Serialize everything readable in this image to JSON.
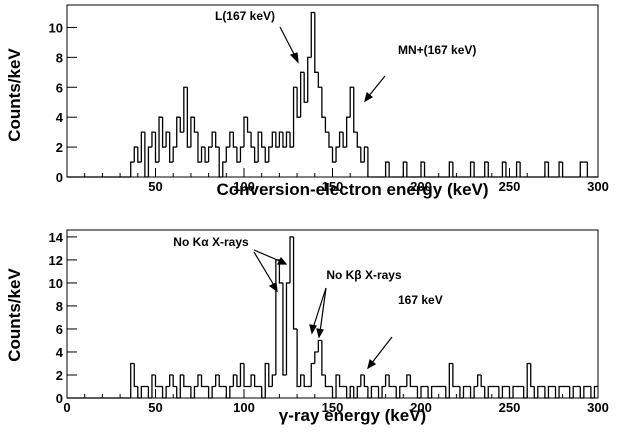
{
  "chart_data": [
    {
      "type": "histogram",
      "x_label": "Conversion-electron energy (keV)",
      "y_label": "Counts/keV",
      "color": "#000000",
      "xlim": [
        0,
        300
      ],
      "ylim": [
        0,
        11.5
      ],
      "xticks": [
        50,
        100,
        150,
        200,
        250,
        300
      ],
      "yticks": [
        0,
        2,
        4,
        6,
        8,
        10
      ],
      "annotations": [
        "L(167 keV)",
        "MN+(167 keV)"
      ],
      "bins": [
        0,
        2,
        4,
        6,
        8,
        10,
        12,
        14,
        16,
        18,
        20,
        22,
        24,
        26,
        28,
        30,
        32,
        34,
        36,
        38,
        40,
        42,
        44,
        46,
        48,
        50,
        52,
        54,
        56,
        58,
        60,
        62,
        64,
        66,
        68,
        70,
        72,
        74,
        76,
        78,
        80,
        82,
        84,
        86,
        88,
        90,
        92,
        94,
        96,
        98,
        100,
        102,
        104,
        106,
        108,
        110,
        112,
        114,
        116,
        118,
        120,
        122,
        124,
        126,
        128,
        130,
        132,
        134,
        136,
        138,
        140,
        142,
        144,
        146,
        148,
        150,
        152,
        154,
        156,
        158,
        160,
        162,
        164,
        166,
        168,
        170,
        172,
        174,
        176,
        178,
        180,
        182,
        184,
        186,
        188,
        190,
        192,
        194,
        196,
        198,
        200,
        202,
        204,
        206,
        208,
        210,
        212,
        214,
        216,
        218,
        220,
        222,
        224,
        226,
        228,
        230,
        232,
        234,
        236,
        238,
        240,
        242,
        244,
        246,
        248,
        250,
        252,
        254,
        256,
        258,
        260,
        262,
        264,
        266,
        268,
        270,
        272,
        274,
        276,
        278,
        280,
        282,
        284,
        286,
        288,
        290,
        292,
        294,
        296,
        298,
        300
      ],
      "values": [
        0,
        0,
        0,
        0,
        0,
        0,
        0,
        0,
        0,
        0,
        0,
        0,
        0,
        0,
        0,
        0,
        0,
        0,
        1,
        2,
        1,
        3,
        0,
        2,
        3,
        1,
        4,
        2,
        3,
        1,
        2,
        4,
        3,
        6,
        2,
        4,
        3,
        1,
        2,
        1,
        2,
        3,
        2,
        0,
        1,
        2,
        3,
        2,
        1,
        2,
        4,
        3,
        2,
        1,
        3,
        2,
        1,
        2,
        3,
        2,
        3,
        2,
        3,
        2,
        6,
        4,
        7,
        5,
        8,
        11,
        7,
        6,
        4,
        3,
        2,
        1,
        2,
        3,
        2,
        4,
        6,
        3,
        2,
        1,
        2,
        0,
        0,
        0,
        0,
        0,
        1,
        0,
        0,
        0,
        0,
        1,
        0,
        0,
        0,
        0,
        1,
        0,
        0,
        0,
        0,
        0,
        0,
        0,
        1,
        0,
        0,
        0,
        0,
        0,
        1,
        0,
        0,
        0,
        1,
        0,
        0,
        0,
        0,
        1,
        0,
        0,
        0,
        1,
        0,
        0,
        0,
        0,
        0,
        0,
        0,
        1,
        0,
        0,
        0,
        1,
        0,
        0,
        0,
        0,
        0,
        1,
        1,
        0,
        0,
        0
      ]
    },
    {
      "type": "histogram",
      "x_label": "γ-ray energy (keV)",
      "y_label": "Counts/keV",
      "color": "#000000",
      "xlim": [
        0,
        300
      ],
      "ylim": [
        0,
        14.6
      ],
      "xticks": [
        0,
        50,
        100,
        150,
        200,
        250,
        300
      ],
      "yticks": [
        0,
        2,
        4,
        6,
        8,
        10,
        12,
        14
      ],
      "annotations": [
        "No Kα X-rays",
        "No Kβ X-rays",
        "167 keV"
      ],
      "bins": [
        0,
        2,
        4,
        6,
        8,
        10,
        12,
        14,
        16,
        18,
        20,
        22,
        24,
        26,
        28,
        30,
        32,
        34,
        36,
        38,
        40,
        42,
        44,
        46,
        48,
        50,
        52,
        54,
        56,
        58,
        60,
        62,
        64,
        66,
        68,
        70,
        72,
        74,
        76,
        78,
        80,
        82,
        84,
        86,
        88,
        90,
        92,
        94,
        96,
        98,
        100,
        102,
        104,
        106,
        108,
        110,
        112,
        114,
        116,
        118,
        120,
        122,
        124,
        126,
        128,
        130,
        132,
        134,
        136,
        138,
        140,
        142,
        144,
        146,
        148,
        150,
        152,
        154,
        156,
        158,
        160,
        162,
        164,
        166,
        168,
        170,
        172,
        174,
        176,
        178,
        180,
        182,
        184,
        186,
        188,
        190,
        192,
        194,
        196,
        198,
        200,
        202,
        204,
        206,
        208,
        210,
        212,
        214,
        216,
        218,
        220,
        222,
        224,
        226,
        228,
        230,
        232,
        234,
        236,
        238,
        240,
        242,
        244,
        246,
        248,
        250,
        252,
        254,
        256,
        258,
        260,
        262,
        264,
        266,
        268,
        270,
        272,
        274,
        276,
        278,
        280,
        282,
        284,
        286,
        288,
        290,
        292,
        294,
        296,
        298,
        300
      ],
      "values": [
        0,
        0,
        0,
        0,
        0,
        0,
        0,
        0,
        0,
        0,
        0,
        0,
        0,
        0,
        0,
        0,
        0,
        0,
        3,
        1,
        0,
        1,
        1,
        0,
        2,
        1,
        1,
        0,
        1,
        2,
        1,
        0,
        2,
        1,
        1,
        0,
        1,
        2,
        1,
        1,
        0,
        1,
        2,
        1,
        1,
        0,
        1,
        2,
        1,
        3,
        1,
        1,
        2,
        1,
        1,
        0,
        3,
        1,
        2,
        12,
        10,
        2,
        10,
        14,
        6,
        1,
        2,
        1,
        1,
        3,
        4,
        5,
        2,
        1,
        1,
        0,
        2,
        1,
        1,
        0,
        1,
        0,
        1,
        2,
        1,
        0,
        1,
        1,
        0,
        1,
        2,
        1,
        1,
        0,
        1,
        1,
        2,
        1,
        1,
        0,
        1,
        1,
        0,
        1,
        1,
        1,
        1,
        0,
        3,
        1,
        1,
        0,
        1,
        1,
        0,
        1,
        2,
        1,
        0,
        1,
        1,
        1,
        0,
        1,
        1,
        0,
        1,
        1,
        1,
        0,
        3,
        1,
        0,
        1,
        1,
        0,
        1,
        1,
        0,
        1,
        1,
        1,
        0,
        1,
        1,
        0,
        1,
        1,
        0,
        1
      ]
    }
  ]
}
